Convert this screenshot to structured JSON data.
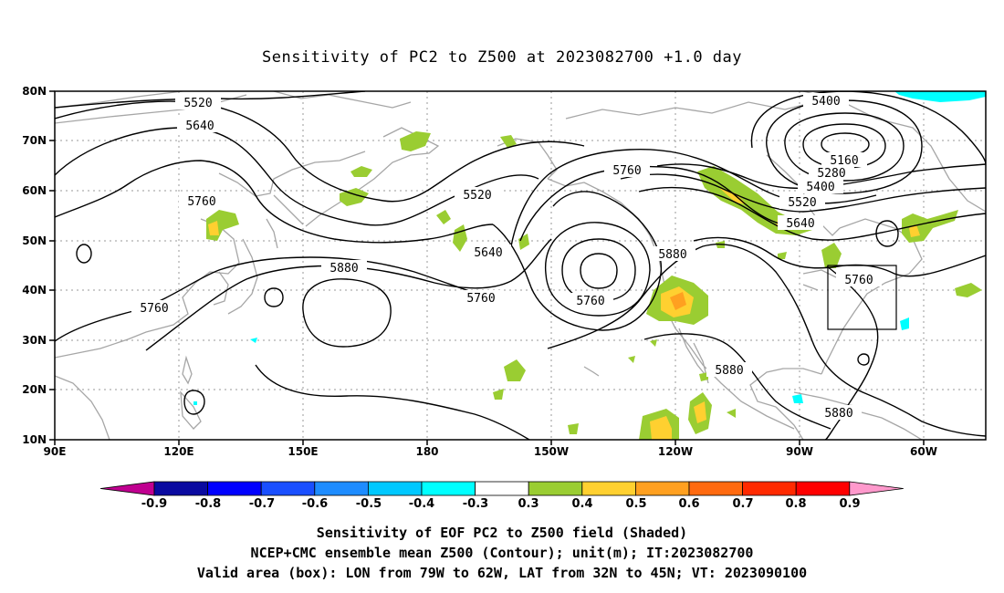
{
  "title": "Sensitivity of PC2 to Z500 at 2023082700 +1.0 day",
  "map": {
    "lon_labels": [
      "90E",
      "120E",
      "150E",
      "180",
      "150W",
      "120W",
      "90W",
      "60W"
    ],
    "lat_labels": [
      "80N",
      "70N",
      "60N",
      "50N",
      "40N",
      "30N",
      "20N",
      "10N"
    ],
    "land_color": "#a6a6a6",
    "grid_color": "#9a9a9a",
    "contour_color": "#000000",
    "valid_box": {
      "lon_from": "79W",
      "lon_to": "62W",
      "lat_from": "32N",
      "lat_to": "45N"
    },
    "contour_labels": [
      "5400",
      "5520",
      "5640",
      "5760",
      "5760",
      "5520",
      "5880",
      "5640",
      "5760",
      "5760",
      "5880",
      "5760",
      "5160",
      "5280",
      "5400",
      "5520",
      "5640",
      "5760",
      "5880",
      "5880"
    ]
  },
  "colorbar": {
    "labels": [
      "-0.9",
      "-0.8",
      "-0.7",
      "-0.6",
      "-0.5",
      "-0.4",
      "-0.3",
      "0.3",
      "0.4",
      "0.5",
      "0.6",
      "0.7",
      "0.8",
      "0.9"
    ],
    "colors": [
      "#c00090",
      "#0a0aa0",
      "#0000ff",
      "#1a4fff",
      "#1e8cff",
      "#00c8ff",
      "#00ffff",
      "#ffffff",
      "#9acd32",
      "#ffd030",
      "#ffa020",
      "#ff6a10",
      "#ff2a00",
      "#ff0000",
      "#ff99cc"
    ]
  },
  "captions": [
    "Sensitivity of EOF PC2 to Z500 field (Shaded)",
    "NCEP+CMC ensemble mean Z500 (Contour); unit(m); IT:2023082700",
    "Valid area (box): LON from 79W to 62W, LAT from 32N to 45N; VT: 2023090100"
  ]
}
